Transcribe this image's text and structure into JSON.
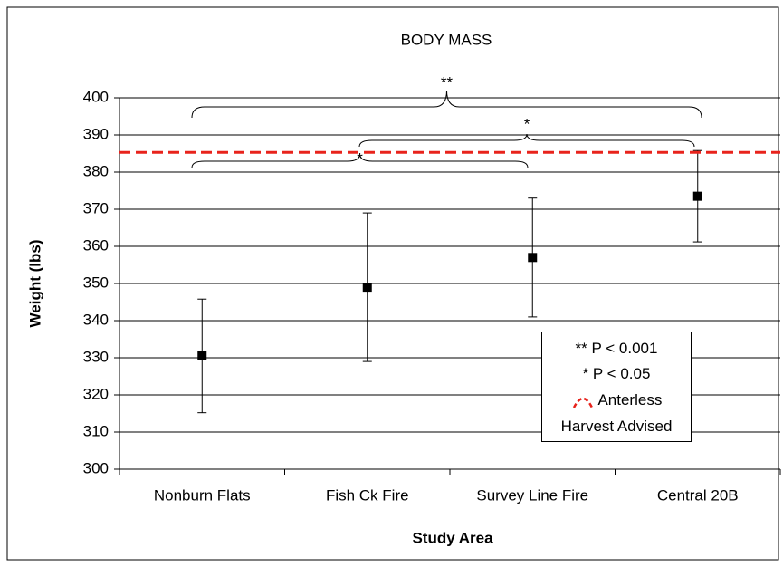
{
  "chart_data": {
    "type": "errorbar",
    "title": "BODY MASS",
    "x_label": "Study Area",
    "y_label": "Weight (lbs)",
    "categories": [
      "Nonburn Flats",
      "Fish Ck Fire",
      "Survey Line Fire",
      "Central 20B"
    ],
    "series": [
      {
        "color": "#000000",
        "values": [
          330.5,
          349,
          357,
          373.5
        ],
        "errors": [
          15.3,
          20,
          16,
          12.3
        ]
      }
    ],
    "reference_line": {
      "name": "Anterless Harvest Advised",
      "value": 385.3,
      "color": "#e8231c"
    },
    "annotations": [
      "**",
      "*",
      "*"
    ],
    "legend_notes": [
      "** P < 0.001",
      "* P < 0.05"
    ],
    "ylim": [
      300,
      400
    ],
    "yticks": [
      300,
      310,
      320,
      330,
      340,
      350,
      360,
      370,
      380,
      390,
      400
    ],
    "grid": true
  }
}
